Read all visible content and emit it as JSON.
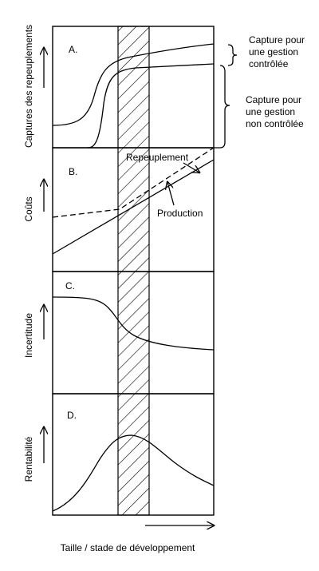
{
  "axis_labels": {
    "x": "Taille / stade de développement",
    "panels": [
      "Captures des repeuplements",
      "Coûts",
      "Incertitude",
      "Rentabilité"
    ]
  },
  "panels": [
    {
      "label": "A."
    },
    {
      "label": "B.",
      "annotations": [
        "Repeuplement",
        "Production"
      ]
    },
    {
      "label": "C."
    },
    {
      "label": "D."
    }
  ],
  "annotations": {
    "controlled": [
      "Capture pour",
      "une gestion",
      "contrôlée"
    ],
    "uncontrolled": [
      "Capture pour",
      "une gestion",
      "non contrôlée"
    ]
  }
}
